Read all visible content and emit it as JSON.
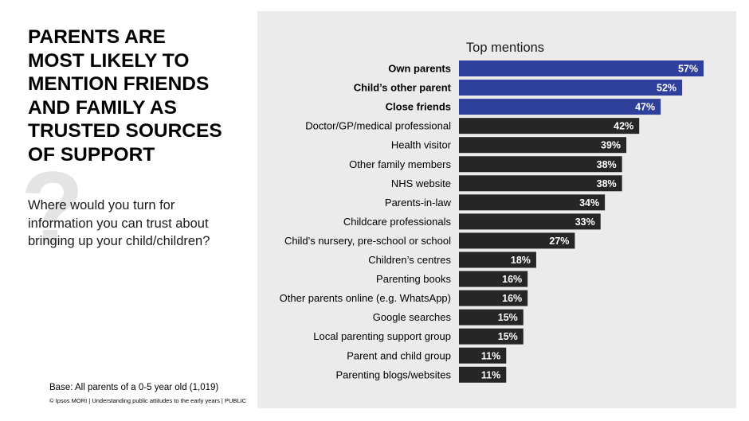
{
  "title": "PARENTS ARE\nMOST LIKELY TO\nMENTION FRIENDS\nAND FAMILY AS\nTRUSTED SOURCES\nOF SUPPORT",
  "question_mark": "?",
  "question": "Where would you turn for\ninformation you can trust about\nbringing up your child/children?",
  "base": "Base: All parents of a 0-5 year old (1,019)",
  "footer": "© Ipsos MORI | Understanding public attitudes to the early years | PUBLIC",
  "colors": {
    "highlight_bar": "#2f3f9c",
    "bar": "#262626",
    "panel": "#ebebeb"
  },
  "chart_data": {
    "type": "bar",
    "orientation": "horizontal",
    "title": "Top mentions",
    "categories": [
      "Own parents",
      "Child’s other parent",
      "Close friends",
      "Doctor/GP/medical professional",
      "Health visitor",
      "Other family members",
      "NHS website",
      "Parents-in-law",
      "Childcare professionals",
      "Child’s nursery, pre-school or school",
      "Children’s centres",
      "Parenting books",
      "Other parents online (e.g. WhatsApp)",
      "Google searches",
      "Local parenting support group",
      "Parent and child group",
      "Parenting blogs/websites"
    ],
    "values": [
      57,
      52,
      47,
      42,
      39,
      38,
      38,
      34,
      33,
      27,
      18,
      16,
      16,
      15,
      15,
      11,
      11
    ],
    "value_labels": [
      "57%",
      "52%",
      "47%",
      "42%",
      "39%",
      "38%",
      "38%",
      "34%",
      "33%",
      "27%",
      "18%",
      "16%",
      "16%",
      "15%",
      "15%",
      "11%",
      "11%"
    ],
    "highlighted": [
      true,
      true,
      true,
      false,
      false,
      false,
      false,
      false,
      false,
      false,
      false,
      false,
      false,
      false,
      false,
      false,
      false
    ],
    "unit": "%",
    "xlim": [
      0,
      57
    ],
    "grid": false,
    "legend": "none"
  }
}
